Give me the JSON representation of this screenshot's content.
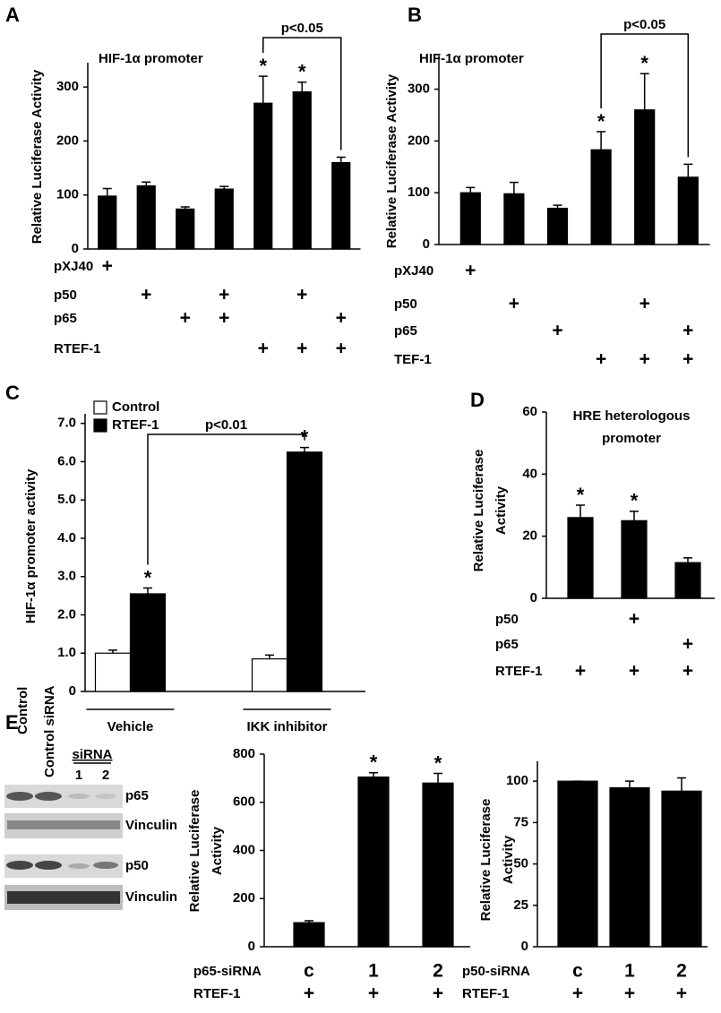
{
  "chart_data": [
    {
      "type": "bar",
      "panel": "A",
      "title": [
        "HIF-1α promoter"
      ],
      "ylabel": [
        "Relative Luciferase Activity"
      ],
      "values": [
        98,
        117,
        74,
        111,
        270,
        291,
        160
      ],
      "errors": [
        14,
        7,
        4,
        5,
        50,
        18,
        10
      ],
      "significance": [
        null,
        null,
        null,
        null,
        "*",
        "*",
        null
      ],
      "color": "#000000",
      "ylim": [
        0,
        345
      ],
      "yticks": [
        0,
        100,
        200,
        300
      ],
      "bracket": "p<0.05",
      "conditions": [
        {
          "label": "pXJ40",
          "marks": [
            "+",
            null,
            null,
            null,
            null,
            null,
            null
          ]
        },
        {
          "label": "p50",
          "marks": [
            null,
            "+",
            null,
            "+",
            null,
            "+",
            null
          ]
        },
        {
          "label": "p65",
          "marks": [
            null,
            null,
            "+",
            "+",
            null,
            null,
            "+"
          ]
        },
        {
          "label": "RTEF-1",
          "marks": [
            null,
            null,
            null,
            null,
            "+",
            "+",
            "+"
          ]
        }
      ]
    },
    {
      "type": "bar",
      "panel": "B",
      "title": [
        "HIF-1α promoter"
      ],
      "ylabel": [
        "Relative Luciferase Activity"
      ],
      "values": [
        100,
        98,
        70,
        183,
        260,
        130
      ],
      "errors": [
        10,
        22,
        6,
        35,
        70,
        25
      ],
      "significance": [
        null,
        null,
        null,
        "*",
        "*",
        null
      ],
      "color": "#000000",
      "ylim": [
        0,
        365
      ],
      "yticks": [
        0,
        100,
        200,
        300
      ],
      "bracket": "p<0.05",
      "conditions": [
        {
          "label": "pXJ40",
          "marks": [
            "+",
            null,
            null,
            null,
            null,
            null
          ]
        },
        {
          "label": "p50",
          "marks": [
            null,
            "+",
            null,
            null,
            "+",
            null
          ]
        },
        {
          "label": "p65",
          "marks": [
            null,
            null,
            "+",
            null,
            null,
            "+"
          ]
        },
        {
          "label": "TEF-1",
          "marks": [
            null,
            null,
            null,
            "+",
            "+",
            "+"
          ]
        }
      ]
    },
    {
      "type": "bar",
      "panel": "C",
      "ylabel": [
        "HIF-1α promoter activity"
      ],
      "categories": [
        "Vehicle",
        "IKK inhibitor"
      ],
      "series": [
        {
          "name": "Control",
          "color": "#ffffff",
          "values": [
            1.0,
            0.85
          ],
          "errors": [
            0.08,
            0.1
          ]
        },
        {
          "name": "RTEF-1",
          "color": "#000000",
          "values": [
            2.55,
            6.25
          ],
          "errors": [
            0.15,
            0.12
          ],
          "significance": [
            "*",
            "*"
          ]
        }
      ],
      "ylim": [
        0,
        7.25
      ],
      "yticks": [
        0,
        {
          "value": 1,
          "label": "1.0"
        },
        {
          "value": 2,
          "label": "2.0"
        },
        {
          "value": 3,
          "label": "3.0"
        },
        {
          "value": 4,
          "label": "4.0"
        },
        {
          "value": 5,
          "label": "5.0"
        },
        {
          "value": 6,
          "label": "6.0"
        },
        {
          "value": 7,
          "label": "7.0"
        }
      ],
      "bracket": "p<0.01"
    },
    {
      "type": "bar",
      "panel": "D",
      "title": [
        "HRE heterologous",
        "promoter"
      ],
      "ylabel": [
        "Relative Luciferase",
        "Activity"
      ],
      "values": [
        26,
        25,
        11.5
      ],
      "errors": [
        4,
        3,
        1.5
      ],
      "significance": [
        "*",
        "*",
        null
      ],
      "color": "#000000",
      "ylim": [
        0,
        60
      ],
      "yticks": [
        0,
        20,
        40,
        60
      ],
      "conditions": [
        {
          "label": "p50",
          "marks": [
            null,
            "+",
            null
          ]
        },
        {
          "label": "p65",
          "marks": [
            null,
            null,
            "+"
          ]
        },
        {
          "label": "RTEF-1",
          "marks": [
            "+",
            "+",
            "+"
          ]
        }
      ]
    },
    {
      "type": "bar",
      "ylabel": [
        "Relative Luciferase",
        "Activity"
      ],
      "values": [
        100,
        705,
        680
      ],
      "errors": [
        8,
        18,
        40
      ],
      "significance": [
        null,
        "*",
        "*"
      ],
      "color": "#000000",
      "ylim": [
        0,
        800
      ],
      "yticks": [
        0,
        200,
        400,
        600,
        800
      ],
      "conditions": [
        {
          "label": "p65-siRNA",
          "marks": [
            "c",
            "1",
            "2"
          ]
        },
        {
          "label": "RTEF-1",
          "marks": [
            "+",
            "+",
            "+"
          ]
        }
      ]
    },
    {
      "type": "bar",
      "ylabel": [
        "Relative Luciferase",
        "Activity"
      ],
      "values": [
        100,
        96,
        94
      ],
      "errors": [
        0,
        4,
        8
      ],
      "color": "#000000",
      "ylim": [
        0,
        112
      ],
      "yticks": [
        0,
        25,
        50,
        75,
        100
      ],
      "conditions": [
        {
          "label": "p50-siRNA",
          "marks": [
            "c",
            "1",
            "2"
          ]
        },
        {
          "label": "RTEF-1",
          "marks": [
            "+",
            "+",
            "+"
          ]
        }
      ]
    }
  ],
  "blot": {
    "panel": "E",
    "lanes": [
      "Control",
      "Control siRNA"
    ],
    "group": "siRNA",
    "group_lanes": [
      "1",
      "2"
    ],
    "bands": [
      "p65",
      "Vinculin",
      "p50",
      "Vinculin"
    ]
  }
}
